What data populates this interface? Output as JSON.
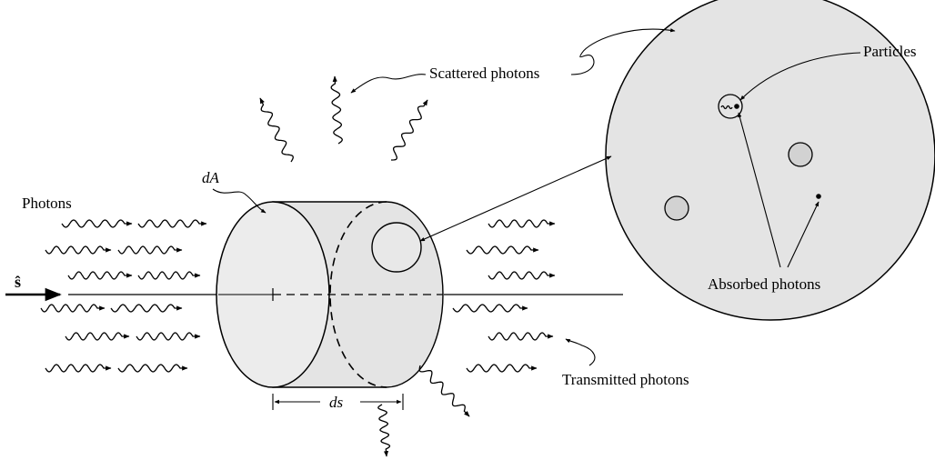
{
  "labels": {
    "photons": "Photons",
    "dA": "dA",
    "s_hat": "ŝ",
    "ds": "ds",
    "scattered": "Scattered photons",
    "particles": "Particles",
    "absorbed": "Absorbed photons",
    "transmitted": "Transmitted photons"
  },
  "colors": {
    "cylinder_fill": "#e4e4e4",
    "face_fill": "#ececec",
    "particle_fill": "#d2d2d2",
    "line": "#000000"
  }
}
